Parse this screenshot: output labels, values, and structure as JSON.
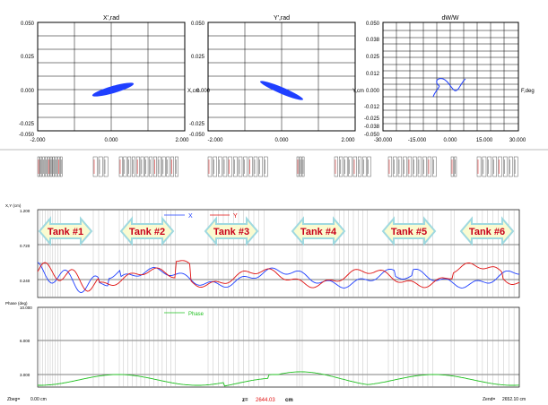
{
  "phase_plots": [
    {
      "title": "X',rad",
      "axis_label": "X,cm",
      "y_ticks": [
        "0.050",
        "0.025",
        "0.000",
        "-0.025",
        "-0.050"
      ],
      "x_ticks": [
        "-2.000",
        "0.000",
        "2.000"
      ]
    },
    {
      "title": "Y',rad",
      "axis_label": "Y,cm",
      "y_ticks": [
        "0.050",
        "0.025",
        "0.000",
        "-0.025",
        "-0.050"
      ],
      "x_ticks": [
        "-2.000",
        "0.000",
        "2.000"
      ]
    },
    {
      "title": "dW/W",
      "axis_label": "F,deg",
      "y_ticks": [
        "0.050",
        "0.038",
        "0.025",
        "0.012",
        "0.000",
        "-0.012",
        "-0.025",
        "-0.038",
        "-0.050"
      ],
      "x_ticks": [
        "-30.000",
        "-15.000",
        "0.000",
        "15.000",
        "30.000"
      ]
    }
  ],
  "envelope_panel": {
    "axis_label": "X,Y (cm)",
    "y_ticks": [
      "1.200",
      "0.720",
      "0.240"
    ],
    "legend": [
      {
        "label": "X",
        "color": "#1f3fff"
      },
      {
        "label": "Y",
        "color": "#e01010"
      }
    ],
    "tanks": [
      "Tank #1",
      "Tank #2",
      "Tank #3",
      "Tank #4",
      "Tank #5",
      "Tank #6"
    ]
  },
  "phase_panel": {
    "axis_label": "Phase (deg)",
    "y_ticks": [
      "10.000",
      "6.000",
      "3.000"
    ],
    "legend": [
      {
        "label": "Phase",
        "color": "#20c020"
      }
    ]
  },
  "status_bar": {
    "zbeg_label": "Zbeg=",
    "zbeg_value": "0.00 cm",
    "z_label": "z=",
    "z_value": "2644.03",
    "z_unit": "cm",
    "zend_label": "Zend=",
    "zend_value": "2652.10 cm"
  },
  "colors": {
    "x_trace": "#1f3fff",
    "y_trace": "#e01010",
    "phase_trace": "#20c020",
    "tank_fill": "#fafbd0",
    "tank_stroke": "#9fd9e0",
    "tank_text": "#c8001a"
  }
}
